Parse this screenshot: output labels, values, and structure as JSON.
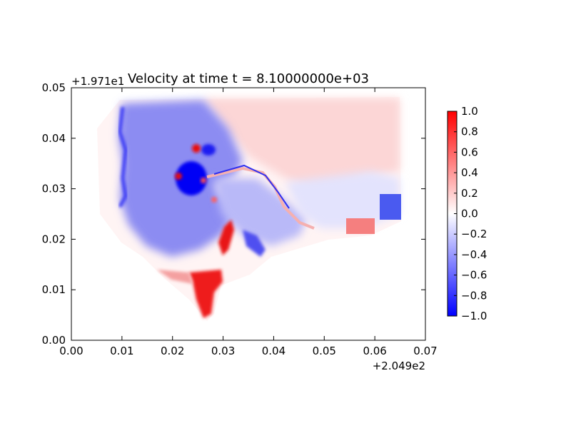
{
  "chart_data": {
    "type": "heatmap",
    "title": "Velocity at time t = 8.10000000e+03",
    "xlabel": "",
    "ylabel": "",
    "x_offset_label": "+2.049e2",
    "y_offset_label": "+1.971e1",
    "xlim": [
      0.0,
      0.07
    ],
    "ylim": [
      0.0,
      0.05
    ],
    "x_ticks": [
      0.0,
      0.01,
      0.02,
      0.03,
      0.04,
      0.05,
      0.06,
      0.07
    ],
    "x_tick_labels": [
      "0.00",
      "0.01",
      "0.02",
      "0.03",
      "0.04",
      "0.05",
      "0.06",
      "0.07"
    ],
    "y_ticks": [
      0.0,
      0.01,
      0.02,
      0.03,
      0.04,
      0.05
    ],
    "y_tick_labels": [
      "0.00",
      "0.01",
      "0.02",
      "0.03",
      "0.04",
      "0.05"
    ],
    "colormap": "bwr",
    "colors": {
      "low": "#0000ff",
      "mid": "#ffffff",
      "high": "#ff0000"
    },
    "colorbar": {
      "range": [
        -1.0,
        1.0
      ],
      "ticks": [
        1.0,
        0.8,
        0.6,
        0.4,
        0.2,
        0.0,
        -0.2,
        -0.4,
        -0.6,
        -0.8,
        -1.0
      ],
      "tick_labels": [
        "1.0",
        "0.8",
        "0.6",
        "0.4",
        "0.2",
        "0.0",
        "−0.2",
        "−0.4",
        "−0.6",
        "−0.8",
        "−1.0"
      ]
    },
    "grid": false,
    "field_features": [
      {
        "region": "north-east",
        "x": [
          0.028,
          0.065
        ],
        "y": [
          0.028,
          0.048
        ],
        "value": 0.15
      },
      {
        "region": "west",
        "x": [
          0.01,
          0.03
        ],
        "y": [
          0.02,
          0.048
        ],
        "value": -0.4
      },
      {
        "region": "eddy",
        "x": [
          0.022,
          0.026
        ],
        "y": [
          0.029,
          0.034
        ],
        "value": -1.0
      },
      {
        "region": "east-pocket",
        "x": [
          0.061,
          0.065
        ],
        "y": [
          0.024,
          0.029
        ],
        "value": -0.7
      },
      {
        "region": "south-plume",
        "x": [
          0.025,
          0.031
        ],
        "y": [
          0.007,
          0.013
        ],
        "value": 1.0
      },
      {
        "region": "channel-jet",
        "x": [
          0.03,
          0.032
        ],
        "y": [
          0.018,
          0.023
        ],
        "value": 0.9
      },
      {
        "region": "small-blob-1",
        "x": [
          0.025,
          0.026
        ],
        "y": [
          0.037,
          0.039
        ],
        "value": 0.8
      },
      {
        "region": "small-blob-2",
        "x": [
          0.021,
          0.022
        ],
        "y": [
          0.032,
          0.033
        ],
        "value": 0.9
      }
    ]
  }
}
